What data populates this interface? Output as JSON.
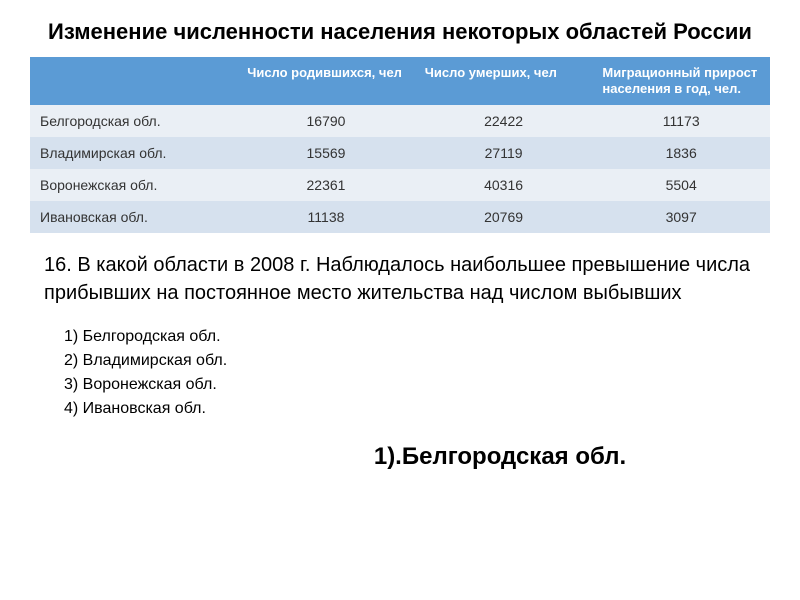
{
  "title": "Изменение численности населения некоторых областей России",
  "table": {
    "header_empty": "",
    "headers": [
      "Число родившихся, чел",
      "Число умерших, чел",
      "Миграционный прирост населения в год, чел."
    ],
    "rows": [
      {
        "region": "Белгородская обл.",
        "born": "16790",
        "died": "22422",
        "migration": "11173"
      },
      {
        "region": "Владимирская обл.",
        "born": "15569",
        "died": "27119",
        "migration": "1836"
      },
      {
        "region": "Воронежская обл.",
        "born": "22361",
        "died": "40316",
        "migration": "5504"
      },
      {
        "region": "Ивановская обл.",
        "born": "11138",
        "died": "20769",
        "migration": "3097"
      }
    ]
  },
  "question": "16. В какой области в 2008 г. Наблюдалось наибольшее превышение числа прибывших на постоянное место жительства над числом выбывших",
  "options": [
    "1) Белгородская обл.",
    "2) Владимирская обл.",
    "3) Воронежская обл.",
    "4) Ивановская обл."
  ],
  "answer": "1).Белгородская обл.",
  "colors": {
    "header_bg": "#5b9bd5",
    "row_odd": "#eaeff5",
    "row_even": "#d6e1ee"
  }
}
